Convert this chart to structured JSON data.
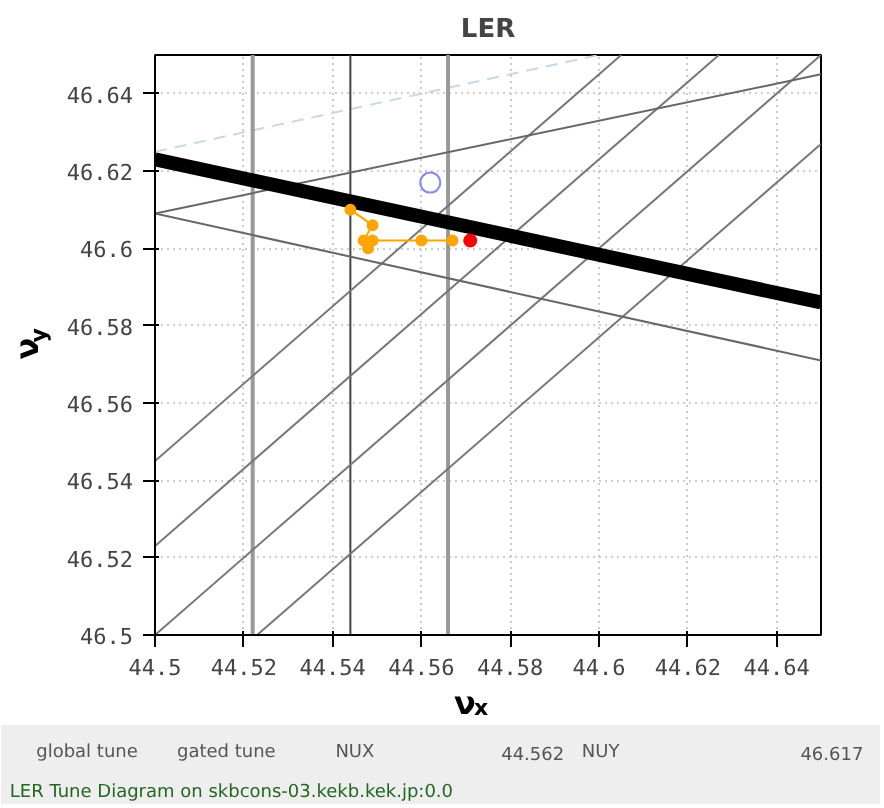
{
  "chart_data": {
    "type": "line",
    "title": "LER",
    "xlabel": "ν$_{x}$",
    "ylabel": "ν$_{y}$",
    "xlim": [
      44.5,
      44.65
    ],
    "ylim": [
      46.5,
      46.65
    ],
    "xticks": [
      44.5,
      44.52,
      44.54,
      44.56,
      44.58,
      44.6,
      44.62,
      44.64
    ],
    "yticks": [
      46.5,
      46.52,
      46.54,
      46.56,
      46.58,
      46.6,
      46.62,
      46.64
    ],
    "grid": true,
    "series": [
      {
        "color": "#c8d8ea",
        "line_style": "dashed",
        "x": [
          44.5,
          44.6
        ],
        "values": [
          46.625,
          46.65
        ]
      },
      {
        "type": "line",
        "color": "#999999",
        "x": [
          44.522,
          44.522
        ],
        "values": [
          46.5,
          46.65
        ]
      },
      {
        "type": "line",
        "color": "#444444",
        "x": [
          44.544,
          44.544
        ],
        "values": [
          46.5,
          46.65
        ]
      },
      {
        "type": "line",
        "color": "#999999",
        "x": [
          44.566,
          44.566
        ],
        "values": [
          46.5,
          46.65
        ]
      },
      {
        "type": "line",
        "color": "#777777",
        "x": [
          44.5,
          44.605
        ],
        "values": [
          46.545,
          46.65
        ]
      },
      {
        "type": "line",
        "color": "#777777",
        "x": [
          44.5,
          44.627
        ],
        "values": [
          46.523,
          46.65
        ]
      },
      {
        "type": "line",
        "color": "#777777",
        "x": [
          44.5,
          44.65
        ],
        "values": [
          46.5,
          46.65
        ]
      },
      {
        "type": "line",
        "color": "#777777",
        "x": [
          44.523,
          44.65
        ],
        "values": [
          46.5,
          46.627
        ]
      },
      {
        "type": "line",
        "color": "#666666",
        "x": [
          44.5,
          44.65
        ],
        "values": [
          46.609,
          46.645
        ]
      },
      {
        "type": "line",
        "color": "#666666",
        "x": [
          44.5,
          44.65
        ],
        "values": [
          46.609,
          46.571
        ]
      },
      {
        "type": "line",
        "color": "#000000",
        "x": [
          44.5,
          44.65
        ],
        "values": [
          46.623,
          46.586
        ]
      },
      {
        "type": "line",
        "color": "#ffa500",
        "marker": "circle",
        "x": [
          44.544,
          44.549,
          44.547,
          44.548,
          44.549,
          44.56,
          44.567
        ],
        "values": [
          46.61,
          46.606,
          46.602,
          46.6,
          46.602,
          46.602,
          46.602
        ]
      },
      {
        "type": "scatter",
        "color": "#ff0000",
        "marker": "circle",
        "x": [
          44.571
        ],
        "values": [
          46.602
        ]
      },
      {
        "type": "scatter",
        "color": "#8888ff",
        "marker": "circle",
        "x": [
          44.562
        ],
        "values": [
          46.617
        ]
      }
    ],
    "annotations": [
      "global tune",
      "gated tune",
      "NUX",
      "44.562",
      "NUY",
      "46.617",
      "LER Tune Diagram on skbcons-03.kekb.kek.jp:0.0"
    ]
  }
}
